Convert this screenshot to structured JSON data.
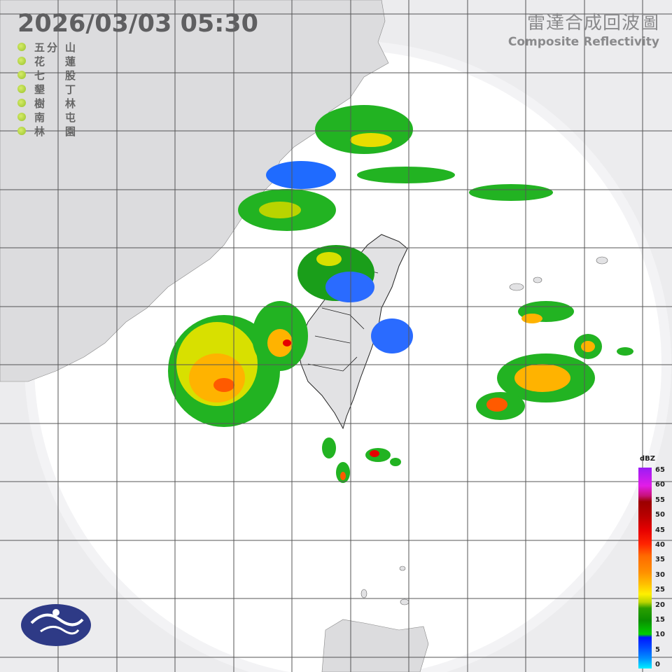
{
  "timestamp": "2026/03/03  05:30",
  "title": {
    "zh": "雷達合成回波圖",
    "en": "Composite Reflectivity"
  },
  "stations": [
    {
      "a": "五分",
      "b": "山"
    },
    {
      "a": "花",
      "b": "蓮"
    },
    {
      "a": "七",
      "b": "股"
    },
    {
      "a": "墾",
      "b": "丁"
    },
    {
      "a": "樹",
      "b": "林"
    },
    {
      "a": "南",
      "b": "屯"
    },
    {
      "a": "林",
      "b": "園"
    }
  ],
  "station_status_color": "#a8cf30",
  "colorbar": {
    "unit": "dBZ",
    "labels": [
      "65",
      "60",
      "55",
      "50",
      "45",
      "40",
      "35",
      "30",
      "25",
      "20",
      "15",
      "10",
      "5",
      "0"
    ]
  },
  "logo": "cwa-logo"
}
